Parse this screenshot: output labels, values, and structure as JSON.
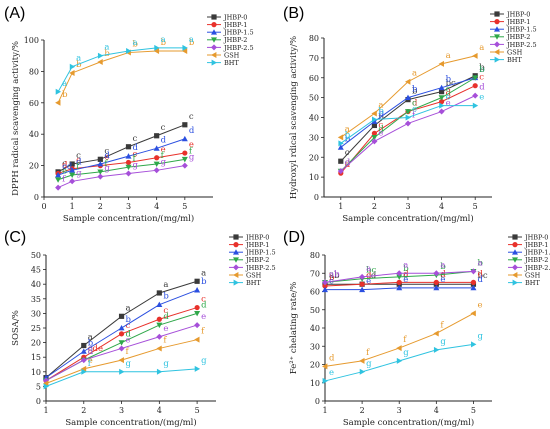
{
  "colors": {
    "JHBP-0": "#3a3a3a",
    "JHBP-1": "#e8312b",
    "JHBP-1.5": "#2b4fe0",
    "JHBP-2": "#2fa84a",
    "JHBP-2.5": "#a64fd9",
    "GSH": "#e69a2e",
    "BHT": "#2fc3e0"
  },
  "chart_data": [
    {
      "panel": "(A)",
      "type": "line",
      "xlabel": "Sample concentration/(mg/ml)",
      "ylabel": "DPPH radical scavenging activity/%",
      "xlim": [
        0,
        6
      ],
      "ylim": [
        0,
        100
      ],
      "xticks": [
        0,
        1,
        2,
        3,
        4,
        5
      ],
      "yticks": [
        0,
        20,
        40,
        60,
        80,
        100
      ],
      "legend": "top-right",
      "x": [
        0.5,
        1,
        2,
        3,
        4,
        5
      ],
      "series": [
        {
          "name": "JHBP-0",
          "marker": "square",
          "values": [
            16,
            21,
            24,
            32,
            39,
            46
          ],
          "letters": [
            "c",
            "c",
            "c",
            "c",
            "c",
            "c"
          ]
        },
        {
          "name": "JHBP-1",
          "marker": "circle",
          "values": [
            15,
            18,
            20,
            22,
            25,
            28
          ],
          "letters": [
            "d",
            "e",
            "e",
            "e",
            "e",
            "e"
          ]
        },
        {
          "name": "JHBP-1.5",
          "marker": "triangle-up",
          "values": [
            14,
            17,
            21,
            26,
            31,
            37
          ],
          "letters": [
            "cd",
            "d",
            "d",
            "d",
            "d",
            "d"
          ]
        },
        {
          "name": "JHBP-2",
          "marker": "triangle-down",
          "values": [
            11,
            14,
            16,
            19,
            21,
            24
          ],
          "letters": [
            "e",
            "f",
            "f",
            "f",
            "f",
            "f"
          ]
        },
        {
          "name": "JHBP-2.5",
          "marker": "diamond",
          "values": [
            6,
            10,
            13,
            15,
            17,
            20
          ],
          "letters": [
            "f",
            "g",
            "g",
            "g",
            "g",
            "g"
          ]
        },
        {
          "name": "GSH",
          "marker": "triangle-left",
          "values": [
            60,
            79,
            86,
            92,
            93,
            93
          ],
          "letters": [
            "b",
            "b",
            "b",
            "b",
            "b",
            "b"
          ]
        },
        {
          "name": "BHT",
          "marker": "triangle-right",
          "values": [
            67,
            83,
            90,
            93,
            95,
            95
          ],
          "letters": [
            "a",
            "a",
            "a",
            "a",
            "a",
            "a"
          ]
        }
      ]
    },
    {
      "panel": "(B)",
      "type": "line",
      "xlabel": "Sample concentration/(mg/ml)",
      "ylabel": "Hydroxyl rdical scavenging activity/%",
      "xlim": [
        0.5,
        5.5
      ],
      "ylim": [
        0,
        80
      ],
      "xticks": [
        1,
        2,
        3,
        4,
        5
      ],
      "yticks": [
        0,
        10,
        20,
        30,
        40,
        50,
        60,
        70,
        80
      ],
      "legend": "top-right",
      "x": [
        1,
        2,
        3,
        4,
        5
      ],
      "series": [
        {
          "name": "JHBP-0",
          "marker": "square",
          "values": [
            18,
            36,
            49,
            53,
            61
          ],
          "letters": [
            "c",
            "b",
            "b",
            "bc",
            "b"
          ]
        },
        {
          "name": "JHBP-1",
          "marker": "circle",
          "values": [
            12,
            32,
            43,
            48,
            56
          ],
          "letters": [
            "d",
            "c",
            "d",
            "d",
            "c"
          ]
        },
        {
          "name": "JHBP-1.5",
          "marker": "triangle-up",
          "values": [
            25,
            38,
            50,
            55,
            60
          ],
          "letters": [
            "b",
            "b",
            "b",
            "b",
            "b"
          ]
        },
        {
          "name": "JHBP-2",
          "marker": "triangle-down",
          "values": [
            13,
            30,
            43,
            50,
            60
          ],
          "letters": [
            "d",
            "d",
            "c",
            "c",
            "b"
          ]
        },
        {
          "name": "JHBP-2.5",
          "marker": "diamond",
          "values": [
            13,
            28,
            37,
            43,
            51
          ],
          "letters": [
            "d",
            "e",
            "f",
            "e",
            "d"
          ]
        },
        {
          "name": "GSH",
          "marker": "triangle-left",
          "values": [
            30,
            42,
            58,
            67,
            71
          ],
          "letters": [
            "a",
            "a",
            "a",
            "a",
            "a"
          ]
        },
        {
          "name": "BHT",
          "marker": "triangle-right",
          "values": [
            27,
            39,
            40,
            46,
            46
          ],
          "letters": [
            "b",
            "b",
            "e",
            "e",
            "e"
          ]
        }
      ]
    },
    {
      "panel": "(C)",
      "type": "line",
      "xlabel": "Sample concentration/(mg/ml)",
      "ylabel": "SOSA/%",
      "xlim": [
        1,
        5.5
      ],
      "ylim": [
        0,
        50
      ],
      "xticks": [
        1,
        2,
        3,
        4,
        5
      ],
      "yticks": [
        0,
        5,
        10,
        15,
        20,
        25,
        30,
        35,
        40,
        45,
        50
      ],
      "legend": "top-right",
      "x": [
        1,
        2,
        3,
        4,
        5
      ],
      "series": [
        {
          "name": "JHBP-0",
          "marker": "square",
          "values": [
            8,
            19,
            29,
            37,
            41
          ],
          "letters": [
            "",
            "a",
            "a",
            "a",
            "a"
          ]
        },
        {
          "name": "JHBP-1",
          "marker": "circle",
          "values": [
            7,
            15,
            23,
            28,
            32
          ],
          "letters": [
            "",
            "cde",
            "c",
            "c",
            "c"
          ]
        },
        {
          "name": "JHBP-1.5",
          "marker": "triangle-up",
          "values": [
            8,
            17,
            25,
            33,
            38
          ],
          "letters": [
            "",
            "b",
            "b",
            "b",
            "b"
          ]
        },
        {
          "name": "JHBP-2",
          "marker": "triangle-down",
          "values": [
            7,
            14,
            20,
            26,
            30
          ],
          "letters": [
            "",
            "d",
            "d",
            "d",
            "d"
          ]
        },
        {
          "name": "JHBP-2.5",
          "marker": "diamond",
          "values": [
            7,
            14,
            18,
            22,
            26
          ],
          "letters": [
            "",
            "d",
            "e",
            "e",
            "e"
          ]
        },
        {
          "name": "GSH",
          "marker": "triangle-left",
          "values": [
            6,
            11,
            14,
            18,
            21
          ],
          "letters": [
            "",
            "e",
            "f",
            "f",
            "f"
          ]
        },
        {
          "name": "BHT",
          "marker": "triangle-right",
          "values": [
            5,
            10,
            10,
            10,
            11
          ],
          "letters": [
            "",
            "f",
            "g",
            "g",
            "g"
          ]
        }
      ]
    },
    {
      "panel": "(D)",
      "type": "line",
      "xlabel": "Sample concentration/(mg/ml)",
      "ylabel": "Fe²⁺ chelating rate/%",
      "xlim": [
        1,
        5.5
      ],
      "ylim": [
        0,
        80
      ],
      "xticks": [
        1,
        2,
        3,
        4,
        5
      ],
      "yticks": [
        0,
        10,
        20,
        30,
        40,
        50,
        60,
        70,
        80
      ],
      "legend": "top-right",
      "x": [
        1,
        2,
        3,
        4,
        5
      ],
      "series": [
        {
          "name": "JHBP-0",
          "marker": "square",
          "values": [
            64,
            64,
            64,
            64,
            64
          ],
          "letters": [
            "ab",
            "cd",
            "c",
            "c",
            "bc"
          ]
        },
        {
          "name": "JHBP-1",
          "marker": "circle",
          "values": [
            63,
            64,
            65,
            65,
            65
          ],
          "letters": [
            "b",
            "d",
            "d",
            "d",
            "d"
          ]
        },
        {
          "name": "JHBP-1.5",
          "marker": "triangle-up",
          "values": [
            61,
            61,
            62,
            62,
            62
          ],
          "letters": [
            "c",
            "e",
            "e",
            "e",
            "d"
          ]
        },
        {
          "name": "JHBP-2",
          "marker": "triangle-down",
          "values": [
            65,
            67,
            68,
            69,
            71
          ],
          "letters": [
            "a",
            "bc",
            "b",
            "b",
            "b"
          ]
        },
        {
          "name": "JHBP-2.5",
          "marker": "diamond",
          "values": [
            65,
            68,
            70,
            70,
            71
          ],
          "letters": [
            "ab",
            "a",
            "a",
            "a",
            "a"
          ]
        },
        {
          "name": "GSH",
          "marker": "triangle-left",
          "values": [
            19,
            22,
            29,
            37,
            48
          ],
          "letters": [
            "d",
            "f",
            "f",
            "f",
            "e"
          ]
        },
        {
          "name": "BHT",
          "marker": "triangle-right",
          "values": [
            11,
            16,
            22,
            28,
            31
          ],
          "letters": [
            "e",
            "g",
            "g",
            "g",
            "g"
          ]
        }
      ]
    }
  ]
}
